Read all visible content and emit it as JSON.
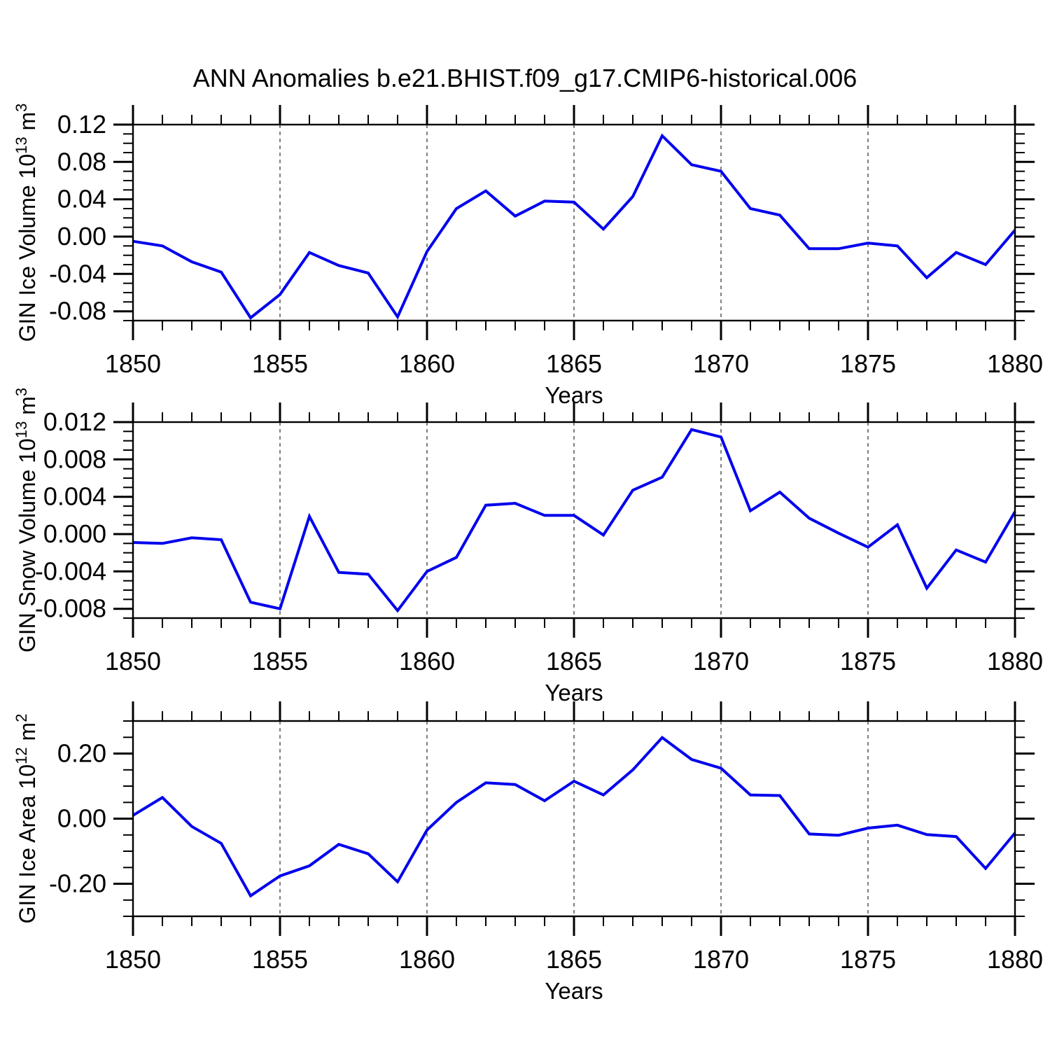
{
  "title": "ANN Anomalies b.e21.BHIST.f09_g17.CMIP6-historical.006",
  "colors": {
    "series_line": "#0000ee",
    "grid": "#555555",
    "axis": "#000000",
    "text": "#000000",
    "background": "#ffffff"
  },
  "chart_data": [
    {
      "id": "gin-ice-volume",
      "type": "line",
      "xlabel": "Years",
      "ylabel_text": "GIN Ice Volume 10^13 m^3",
      "ylabel_parts": [
        {
          "t": "GIN Ice Volume 10"
        },
        {
          "t": "13",
          "sup": true
        },
        {
          "t": " m"
        },
        {
          "t": "3",
          "sup": true
        }
      ],
      "x_range": [
        1850,
        1880
      ],
      "x_major_ticks": [
        1850,
        1855,
        1860,
        1865,
        1870,
        1875,
        1880
      ],
      "x_minor_step": 1,
      "grid_x": [
        1855,
        1860,
        1865,
        1870,
        1875
      ],
      "ylim": [
        -0.09,
        0.12
      ],
      "y_major_tick_values": [
        -0.08,
        -0.04,
        0.0,
        0.04,
        0.08,
        0.12
      ],
      "y_major_tick_labels": [
        "-0.08",
        "-0.04",
        "0.00",
        "0.04",
        "0.08",
        "0.12"
      ],
      "y_minor_step": 0.01,
      "legend": "none",
      "x": [
        1850,
        1851,
        1852,
        1853,
        1854,
        1855,
        1856,
        1857,
        1858,
        1859,
        1860,
        1861,
        1862,
        1863,
        1864,
        1865,
        1866,
        1867,
        1868,
        1869,
        1870,
        1871,
        1872,
        1873,
        1874,
        1875,
        1876,
        1877,
        1878,
        1879,
        1880
      ],
      "values": [
        -0.005,
        -0.01,
        -0.027,
        -0.038,
        -0.087,
        -0.062,
        -0.017,
        -0.031,
        -0.039,
        -0.086,
        -0.016,
        0.03,
        0.049,
        0.022,
        0.038,
        0.037,
        0.008,
        0.043,
        0.108,
        0.077,
        0.07,
        0.03,
        0.023,
        -0.013,
        -0.013,
        -0.007,
        -0.01,
        -0.044,
        -0.017,
        -0.03,
        0.007
      ]
    },
    {
      "id": "gin-snow-volume",
      "type": "line",
      "xlabel": "Years",
      "ylabel_text": "GIN Snow Volume 10^13 m^3",
      "ylabel_parts": [
        {
          "t": "GIN Snow Volume 10"
        },
        {
          "t": "13",
          "sup": true
        },
        {
          "t": " m"
        },
        {
          "t": "3",
          "sup": true
        }
      ],
      "x_range": [
        1850,
        1880
      ],
      "x_major_ticks": [
        1850,
        1855,
        1860,
        1865,
        1870,
        1875,
        1880
      ],
      "x_minor_step": 1,
      "grid_x": [
        1855,
        1860,
        1865,
        1870,
        1875
      ],
      "ylim": [
        -0.009,
        0.012
      ],
      "y_major_tick_values": [
        -0.008,
        -0.004,
        0.0,
        0.004,
        0.008,
        0.012
      ],
      "y_major_tick_labels": [
        "-0.008",
        "-0.004",
        "0.000",
        "0.004",
        "0.008",
        "0.012"
      ],
      "y_minor_step": 0.001,
      "legend": "none",
      "x": [
        1850,
        1851,
        1852,
        1853,
        1854,
        1855,
        1856,
        1857,
        1858,
        1859,
        1860,
        1861,
        1862,
        1863,
        1864,
        1865,
        1866,
        1867,
        1868,
        1869,
        1870,
        1871,
        1872,
        1873,
        1874,
        1875,
        1876,
        1877,
        1878,
        1879,
        1880
      ],
      "values": [
        -0.0009,
        -0.001,
        -0.0004,
        -0.0006,
        -0.0073,
        -0.008,
        0.0019,
        -0.0041,
        -0.0043,
        -0.0082,
        -0.004,
        -0.0025,
        0.0031,
        0.0033,
        0.002,
        0.002,
        -0.0001,
        0.0047,
        0.0061,
        0.0112,
        0.0104,
        0.0025,
        0.0045,
        0.0017,
        0.0001,
        -0.0014,
        0.001,
        -0.0058,
        -0.0017,
        -0.003,
        0.0024
      ]
    },
    {
      "id": "gin-ice-area",
      "type": "line",
      "xlabel": "Years",
      "ylabel_text": "GIN Ice Area 10^12 m^2",
      "ylabel_parts": [
        {
          "t": "GIN Ice Area 10"
        },
        {
          "t": "12",
          "sup": true
        },
        {
          "t": " m"
        },
        {
          "t": "2",
          "sup": true
        }
      ],
      "x_range": [
        1850,
        1880
      ],
      "x_major_ticks": [
        1850,
        1855,
        1860,
        1865,
        1870,
        1875,
        1880
      ],
      "x_minor_step": 1,
      "grid_x": [
        1855,
        1860,
        1865,
        1870,
        1875
      ],
      "ylim": [
        -0.3,
        0.3
      ],
      "y_major_tick_values": [
        -0.2,
        0.0,
        0.2
      ],
      "y_major_tick_labels": [
        "-0.20",
        "0.00",
        "0.20"
      ],
      "y_minor_step": 0.05,
      "legend": "none",
      "x": [
        1850,
        1851,
        1852,
        1853,
        1854,
        1855,
        1856,
        1857,
        1858,
        1859,
        1860,
        1861,
        1862,
        1863,
        1864,
        1865,
        1866,
        1867,
        1868,
        1869,
        1870,
        1871,
        1872,
        1873,
        1874,
        1875,
        1876,
        1877,
        1878,
        1879,
        1880
      ],
      "values": [
        0.01,
        0.065,
        -0.024,
        -0.076,
        -0.237,
        -0.176,
        -0.145,
        -0.079,
        -0.108,
        -0.194,
        -0.035,
        0.05,
        0.11,
        0.105,
        0.055,
        0.115,
        0.073,
        0.15,
        0.249,
        0.182,
        0.155,
        0.073,
        0.071,
        -0.047,
        -0.051,
        -0.029,
        -0.02,
        -0.049,
        -0.055,
        -0.153,
        -0.044
      ]
    }
  ]
}
